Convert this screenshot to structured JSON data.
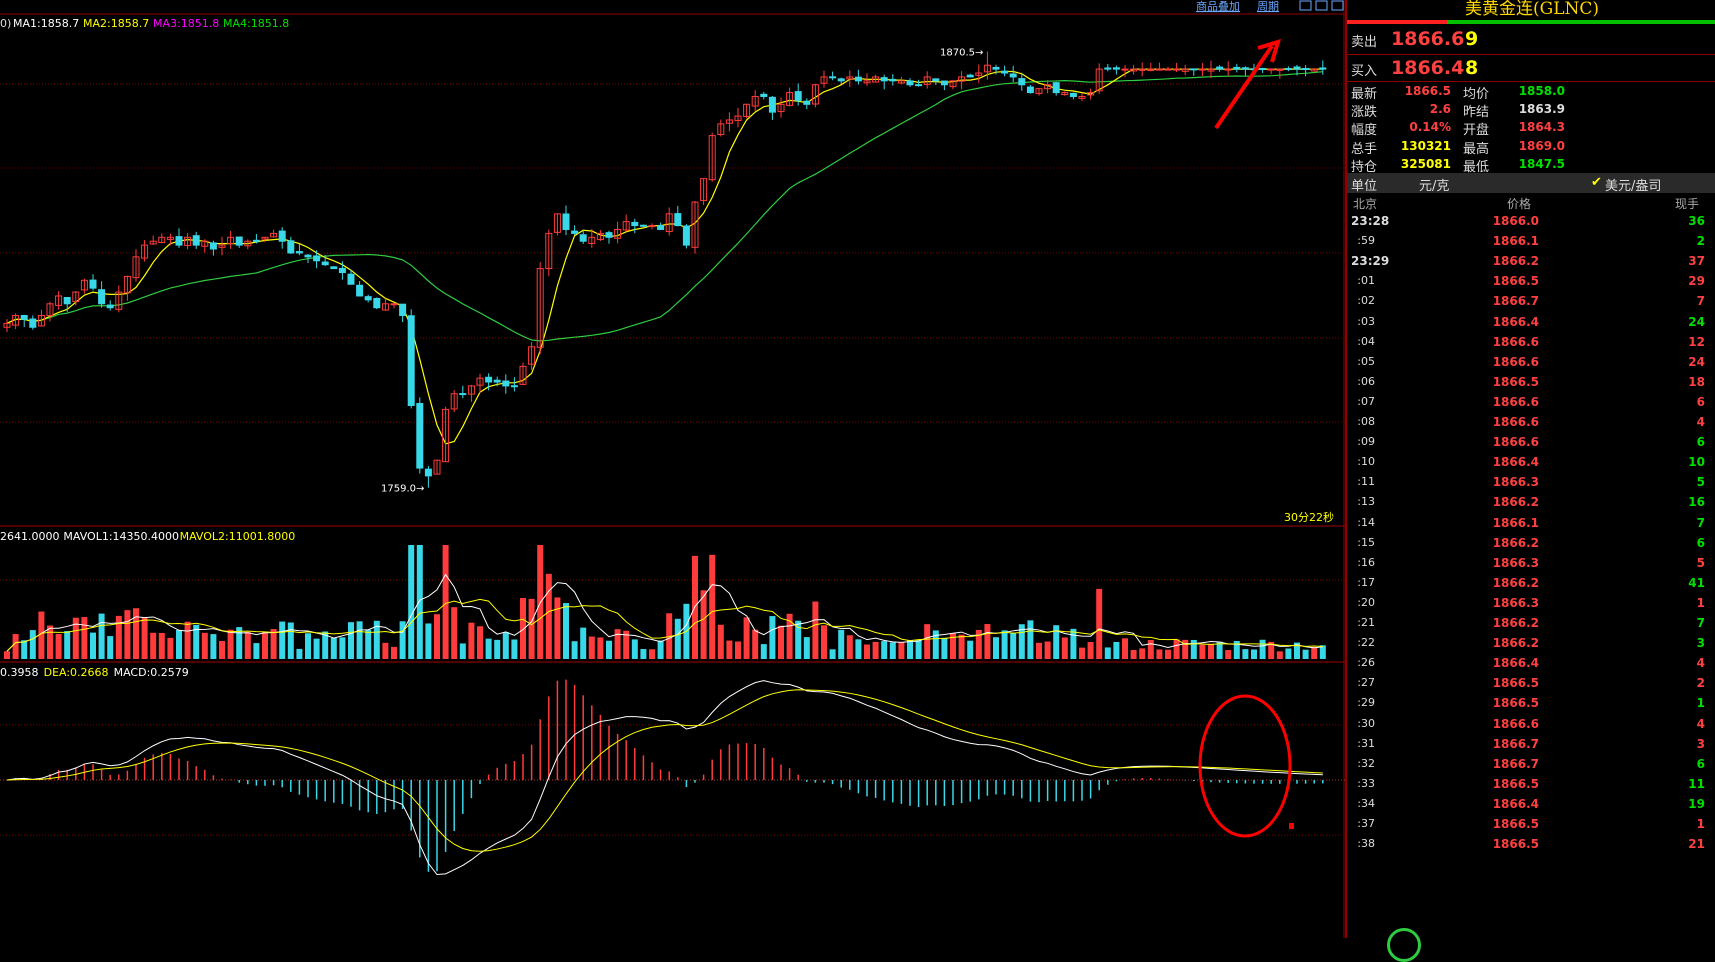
{
  "toolbar": {
    "add_label": "商品叠加",
    "period_label": "周期"
  },
  "main_legend": {
    "prefix": "0)",
    "items": [
      {
        "text": "MA1:1858.7",
        "color": "#ffffff"
      },
      {
        "text": "MA2:1858.7",
        "color": "#ffff00"
      },
      {
        "text": "MA3:1851.8",
        "color": "#ff00ff"
      },
      {
        "text": "MA4:1851.8",
        "color": "#00e000"
      }
    ]
  },
  "volume_legend": {
    "items": [
      {
        "text": "2641.0000",
        "color": "#ffffff"
      },
      {
        "text": "MAVOL1:14350.4000",
        "color": "#ffffff"
      },
      {
        "text": "MAVOL2:11001.8000",
        "color": "#ffff00"
      }
    ]
  },
  "macd_legend": {
    "items": [
      {
        "text": "0.3958",
        "color": "#ffffff"
      },
      {
        "text": "DEA:0.2668",
        "color": "#ffff00"
      },
      {
        "text": "MACD:0.2579",
        "color": "#ffffff"
      }
    ]
  },
  "annotations": {
    "high_label": "1870.5",
    "low_label": "1759.0",
    "countdown": "30分22秒"
  },
  "colors": {
    "up": "#ff3b3b",
    "down": "#38d8e8",
    "ma_short": "#ffff00",
    "ma_long": "#2ecc40",
    "grid": "#7a0000",
    "annotation": "#ff0000"
  },
  "chart_data": {
    "type": "candlestick",
    "high": 1870.5,
    "low": 1759.0,
    "ylim": [
      1752,
      1876
    ],
    "close": [
      1801,
      1803,
      1802,
      1800,
      1803,
      1806,
      1808,
      1806,
      1809,
      1812,
      1810,
      1806,
      1805,
      1809,
      1813,
      1818,
      1821,
      1822,
      1823,
      1823,
      1821,
      1823,
      1821,
      1822,
      1820,
      1821,
      1823,
      1821,
      1822,
      1822,
      1823,
      1824,
      1822,
      1819,
      1819,
      1818,
      1817,
      1816,
      1815,
      1814,
      1811,
      1808,
      1807,
      1805,
      1806,
      1806,
      1803,
      1780,
      1764,
      1762,
      1766,
      1779,
      1783,
      1783,
      1785,
      1787,
      1786,
      1786,
      1785,
      1785,
      1790,
      1795,
      1815,
      1824,
      1829,
      1825,
      1824,
      1822,
      1823,
      1824,
      1823,
      1825,
      1827,
      1826,
      1826,
      1826,
      1825,
      1829,
      1826,
      1821,
      1832,
      1838,
      1849,
      1852,
      1853,
      1854,
      1857,
      1859,
      1859,
      1855,
      1857,
      1860,
      1858,
      1857,
      1862,
      1864,
      1864,
      1863,
      1864,
      1863,
      1863,
      1864,
      1863,
      1863,
      1863,
      1862,
      1862,
      1864,
      1863,
      1862,
      1863,
      1864,
      1864,
      1865,
      1867,
      1866,
      1865,
      1864,
      1862,
      1860,
      1861,
      1862,
      1860,
      1860,
      1859,
      1859,
      1860,
      1866,
      1866,
      1866,
      1866,
      1866,
      1866,
      1866,
      1866,
      1866,
      1866,
      1866,
      1866,
      1866,
      1866,
      1866,
      1866,
      1866,
      1866,
      1866,
      1866,
      1866,
      1866,
      1866,
      1866,
      1866,
      1866,
      1866
    ],
    "volume_peak": 12000,
    "macd": {
      "dif": 0.3958,
      "dea": 0.2668,
      "macd": 0.2579
    },
    "ma": {
      "ma1": 1858.7,
      "ma2": 1858.7,
      "ma3": 1851.8,
      "ma4": 1851.8
    },
    "mavol": {
      "vol": 2641.0,
      "mavol1": 14350.4,
      "mavol2": 11001.8
    }
  },
  "panel": {
    "title": "美黄金连(GLNC)",
    "sell_label": "卖出",
    "sell_price": "1866.6",
    "sell_qty": "9",
    "buy_label": "买入",
    "buy_price": "1866.4",
    "buy_qty": "8",
    "stats": [
      {
        "l1": "最新",
        "v1": "1866.5",
        "c1": "#ff4040",
        "l2": "均价",
        "v2": "1858.0",
        "c2": "#00e000"
      },
      {
        "l1": "涨跌",
        "v1": "2.6",
        "c1": "#ff4040",
        "l2": "昨结",
        "v2": "1863.9",
        "c2": "#dddddd"
      },
      {
        "l1": "幅度",
        "v1": "0.14%",
        "c1": "#ff4040",
        "l2": "开盘",
        "v2": "1864.3",
        "c2": "#ff4040"
      },
      {
        "l1": "总手",
        "v1": "130321",
        "c1": "#ffff00",
        "l2": "最高",
        "v2": "1869.0",
        "c2": "#ff4040"
      },
      {
        "l1": "持仓",
        "v1": "325081",
        "c1": "#ffff00",
        "l2": "最低",
        "v2": "1847.5",
        "c2": "#00e000"
      }
    ],
    "unit_label": "单位",
    "unit_value": "元/克",
    "unit_check": "✔",
    "unit_alt": "美元/盎司",
    "trades_header": {
      "time": "北京",
      "price": "价格",
      "vol": "现手"
    },
    "trades": [
      {
        "t": "23:28",
        "p": "1866.0",
        "v": "36",
        "vc": "#00e000"
      },
      {
        "t": ":59",
        "p": "1866.1",
        "v": "2",
        "vc": "#00e000"
      },
      {
        "t": "23:29",
        "p": "1866.2",
        "v": "37",
        "vc": "#ff4040"
      },
      {
        "t": ":01",
        "p": "1866.5",
        "v": "29",
        "vc": "#ff4040"
      },
      {
        "t": ":02",
        "p": "1866.7",
        "v": "7",
        "vc": "#ff4040"
      },
      {
        "t": ":03",
        "p": "1866.4",
        "v": "24",
        "vc": "#00e000"
      },
      {
        "t": ":04",
        "p": "1866.6",
        "v": "12",
        "vc": "#ff4040"
      },
      {
        "t": ":05",
        "p": "1866.6",
        "v": "24",
        "vc": "#ff4040"
      },
      {
        "t": ":06",
        "p": "1866.5",
        "v": "18",
        "vc": "#ff4040"
      },
      {
        "t": ":07",
        "p": "1866.6",
        "v": "6",
        "vc": "#ff4040"
      },
      {
        "t": ":08",
        "p": "1866.6",
        "v": "4",
        "vc": "#ff4040"
      },
      {
        "t": ":09",
        "p": "1866.6",
        "v": "6",
        "vc": "#00e000"
      },
      {
        "t": ":10",
        "p": "1866.4",
        "v": "10",
        "vc": "#00e000"
      },
      {
        "t": ":11",
        "p": "1866.3",
        "v": "5",
        "vc": "#00e000"
      },
      {
        "t": ":13",
        "p": "1866.2",
        "v": "16",
        "vc": "#00e000"
      },
      {
        "t": ":14",
        "p": "1866.1",
        "v": "7",
        "vc": "#00e000"
      },
      {
        "t": ":15",
        "p": "1866.2",
        "v": "6",
        "vc": "#00e000"
      },
      {
        "t": ":16",
        "p": "1866.3",
        "v": "5",
        "vc": "#ff4040"
      },
      {
        "t": ":17",
        "p": "1866.2",
        "v": "41",
        "vc": "#00e000"
      },
      {
        "t": ":20",
        "p": "1866.3",
        "v": "1",
        "vc": "#ff4040"
      },
      {
        "t": ":21",
        "p": "1866.2",
        "v": "7",
        "vc": "#00e000"
      },
      {
        "t": ":22",
        "p": "1866.2",
        "v": "3",
        "vc": "#00e000"
      },
      {
        "t": ":26",
        "p": "1866.4",
        "v": "4",
        "vc": "#ff4040"
      },
      {
        "t": ":27",
        "p": "1866.5",
        "v": "2",
        "vc": "#ff4040"
      },
      {
        "t": ":29",
        "p": "1866.5",
        "v": "1",
        "vc": "#00e000"
      },
      {
        "t": ":30",
        "p": "1866.6",
        "v": "4",
        "vc": "#ff4040"
      },
      {
        "t": ":31",
        "p": "1866.7",
        "v": "3",
        "vc": "#ff4040"
      },
      {
        "t": ":32",
        "p": "1866.7",
        "v": "6",
        "vc": "#00e000"
      },
      {
        "t": ":33",
        "p": "1866.5",
        "v": "11",
        "vc": "#00e000"
      },
      {
        "t": ":34",
        "p": "1866.4",
        "v": "19",
        "vc": "#00e000"
      },
      {
        "t": ":37",
        "p": "1866.5",
        "v": "1",
        "vc": "#ff4040"
      },
      {
        "t": ":38",
        "p": "1866.5",
        "v": "21",
        "vc": "#ff4040"
      }
    ]
  }
}
